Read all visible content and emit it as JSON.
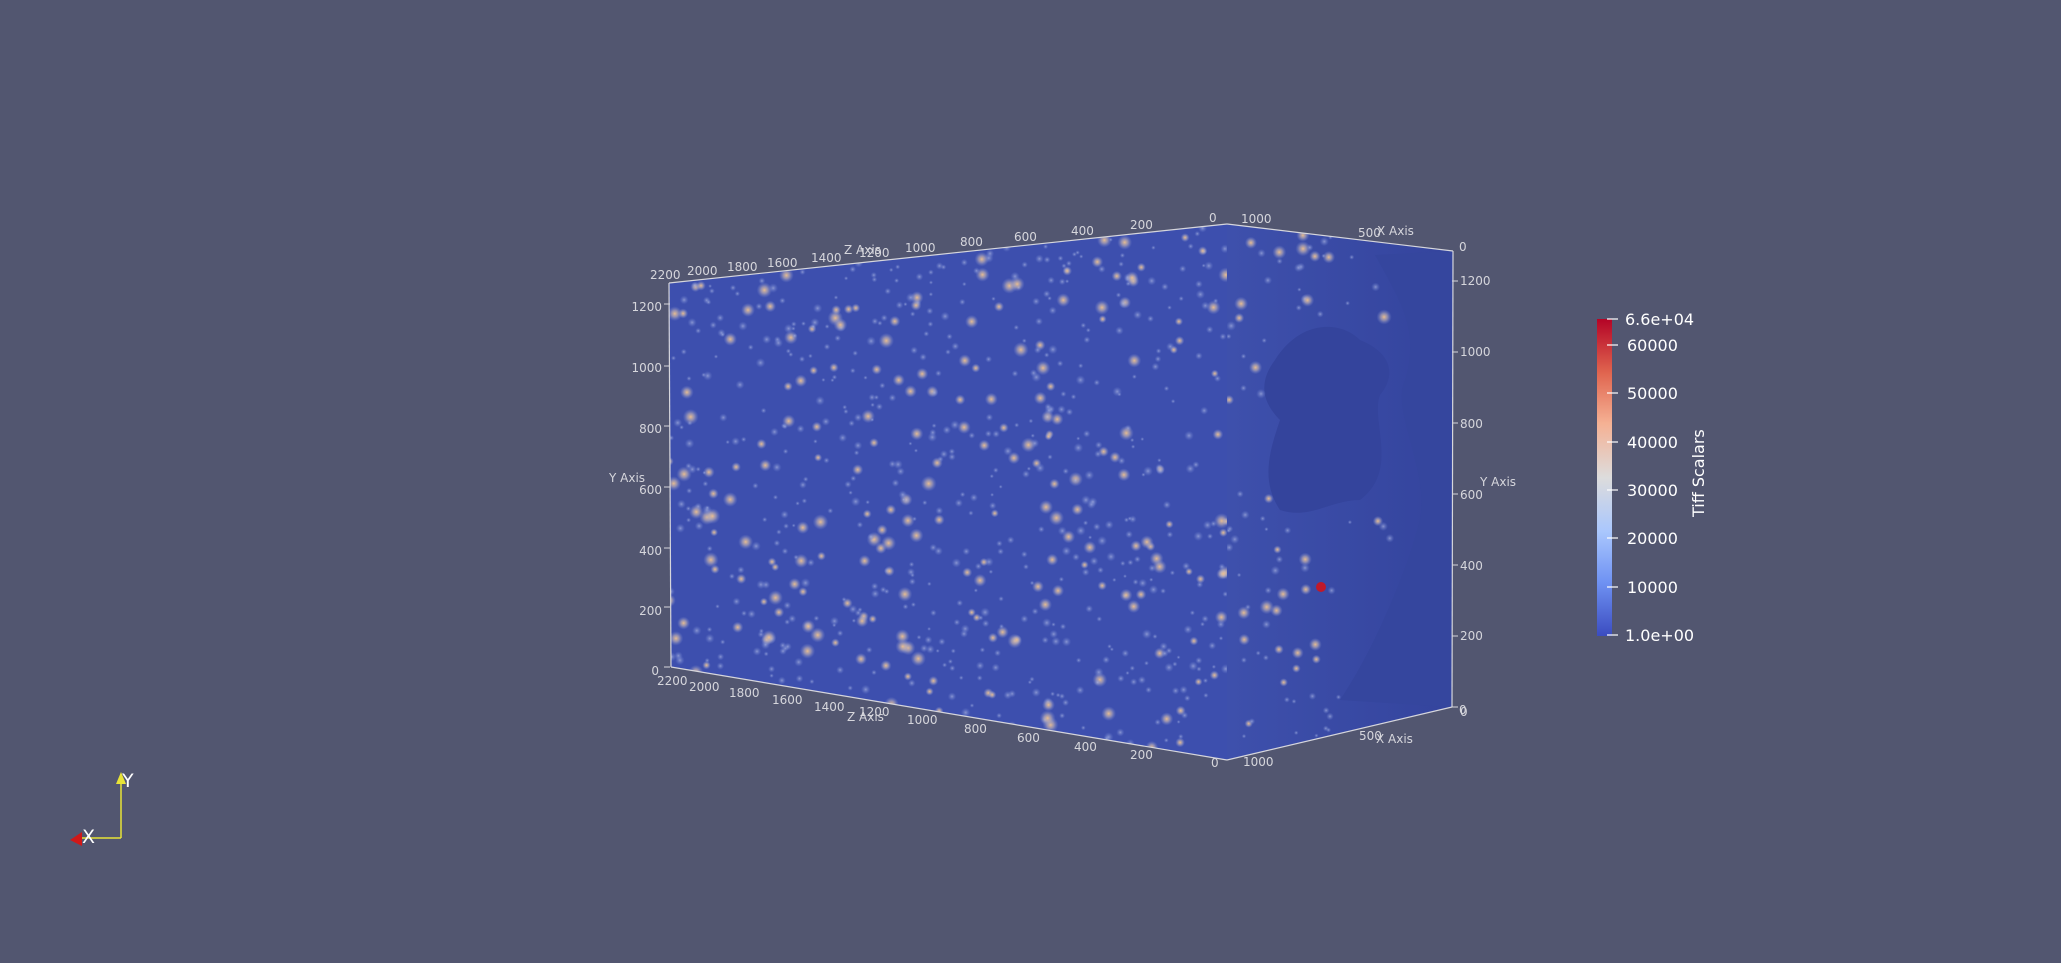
{
  "render_view": {
    "background": "#525670",
    "axes_grid": {
      "x_axis_title": "X Axis",
      "y_axis_title": "Y Axis",
      "z_axis_title": "Z Axis",
      "x_ticks": [
        "0",
        "500",
        "1000"
      ],
      "y_ticks": [
        "0",
        "200",
        "400",
        "600",
        "800",
        "1000",
        "1200"
      ],
      "z_ticks": [
        "0",
        "200",
        "400",
        "600",
        "800",
        "1000",
        "1200",
        "1400",
        "1600",
        "1800",
        "2000",
        "2200"
      ],
      "color": "#d6d6dc"
    },
    "volume": {
      "base_color": "#3b4ca8",
      "hole_color": "#32419a"
    },
    "color_legend": {
      "title": "Tiff Scalars",
      "max_label": "6.6e+04",
      "min_label": "1.0e+00",
      "labels": [
        "60000",
        "50000",
        "40000",
        "30000",
        "20000",
        "10000"
      ],
      "colormap": [
        "#b40426",
        "#e0654f",
        "#f5b194",
        "#dddcdc",
        "#aac7fd",
        "#6f92f3",
        "#3b4cc0"
      ]
    },
    "orientation_triad": {
      "y_label": "Y",
      "x_label": "X",
      "y_color": "#e8e337",
      "x_color": "#d01818"
    }
  }
}
